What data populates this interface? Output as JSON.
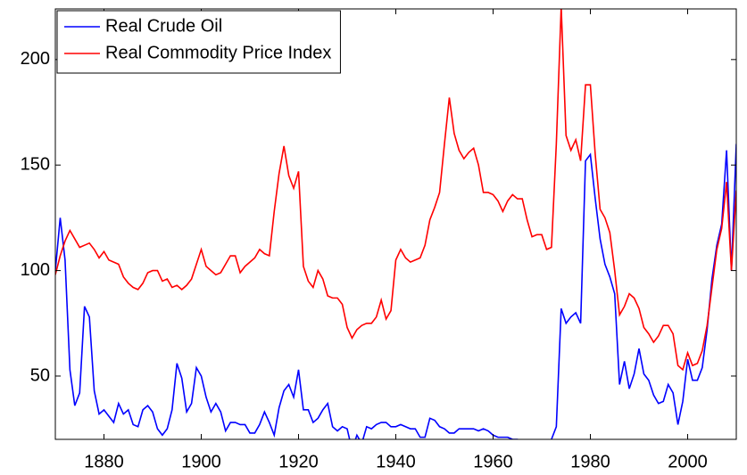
{
  "chart_data": {
    "type": "line",
    "x": [
      1870,
      1871,
      1872,
      1873,
      1874,
      1875,
      1876,
      1877,
      1878,
      1879,
      1880,
      1881,
      1882,
      1883,
      1884,
      1885,
      1886,
      1887,
      1888,
      1889,
      1890,
      1891,
      1892,
      1893,
      1894,
      1895,
      1896,
      1897,
      1898,
      1899,
      1900,
      1901,
      1902,
      1903,
      1904,
      1905,
      1906,
      1907,
      1908,
      1909,
      1910,
      1911,
      1912,
      1913,
      1914,
      1915,
      1916,
      1917,
      1918,
      1919,
      1920,
      1921,
      1922,
      1923,
      1924,
      1925,
      1926,
      1927,
      1928,
      1929,
      1930,
      1931,
      1932,
      1933,
      1934,
      1935,
      1936,
      1937,
      1938,
      1939,
      1940,
      1941,
      1942,
      1943,
      1944,
      1945,
      1946,
      1947,
      1948,
      1949,
      1950,
      1951,
      1952,
      1953,
      1954,
      1955,
      1956,
      1957,
      1958,
      1959,
      1960,
      1961,
      1962,
      1963,
      1964,
      1965,
      1966,
      1967,
      1968,
      1969,
      1970,
      1971,
      1972,
      1973,
      1974,
      1975,
      1976,
      1977,
      1978,
      1979,
      1980,
      1981,
      1982,
      1983,
      1984,
      1985,
      1986,
      1987,
      1988,
      1989,
      1990,
      1991,
      1992,
      1993,
      1994,
      1995,
      1996,
      1997,
      1998,
      1999,
      2000,
      2001,
      2002,
      2003,
      2004,
      2005,
      2006,
      2007,
      2008,
      2009,
      2010
    ],
    "series": [
      {
        "name": "Real Crude Oil",
        "color": "#0000ff",
        "values": [
          100,
          125,
          105,
          53,
          36,
          42,
          83,
          78,
          43,
          32,
          34,
          31,
          28,
          37,
          32,
          34,
          27,
          26,
          34,
          36,
          33,
          25,
          22,
          25,
          34,
          56,
          49,
          33,
          37,
          54,
          50,
          40,
          33,
          37,
          33,
          24,
          28,
          28,
          27,
          27,
          23,
          23,
          27,
          33,
          28,
          22,
          35,
          43,
          46,
          40,
          53,
          34,
          34,
          28,
          30,
          34,
          37,
          26,
          24,
          26,
          25,
          15,
          22,
          18,
          26,
          25,
          27,
          28,
          28,
          26,
          26,
          27,
          26,
          25,
          25,
          21,
          21,
          30,
          29,
          26,
          25,
          23,
          23,
          25,
          25,
          25,
          25,
          24,
          25,
          24,
          22,
          21,
          21,
          21,
          20,
          20,
          19,
          19,
          18,
          17,
          16,
          19,
          20,
          26,
          82,
          75,
          78,
          80,
          75,
          152,
          155,
          134,
          115,
          103,
          97,
          89,
          46,
          57,
          44,
          51,
          63,
          51,
          48,
          41,
          37,
          38,
          46,
          42,
          27,
          38,
          58,
          48,
          48,
          54,
          72,
          96,
          112,
          122,
          157,
          100,
          160
        ]
      },
      {
        "name": "Real Commodity Price Index",
        "color": "#ff0000",
        "values": [
          98,
          107,
          114,
          119,
          115,
          111,
          112,
          113,
          110,
          106,
          109,
          105,
          104,
          103,
          97,
          94,
          92,
          91,
          94,
          99,
          100,
          100,
          95,
          96,
          92,
          93,
          91,
          93,
          96,
          103,
          110,
          102,
          100,
          98,
          99,
          103,
          107,
          107,
          99,
          102,
          104,
          106,
          110,
          108,
          107,
          128,
          146,
          159,
          145,
          139,
          147,
          102,
          95,
          92,
          100,
          96,
          88,
          87,
          87,
          84,
          73,
          68,
          72,
          74,
          75,
          75,
          78,
          86,
          77,
          81,
          105,
          110,
          106,
          104,
          105,
          106,
          112,
          124,
          130,
          137,
          160,
          182,
          165,
          157,
          153,
          156,
          158,
          150,
          137,
          137,
          136,
          133,
          128,
          133,
          136,
          134,
          134,
          124,
          116,
          117,
          117,
          110,
          111,
          160,
          225,
          164,
          157,
          162,
          152,
          188,
          188,
          155,
          129,
          125,
          118,
          100,
          79,
          83,
          89,
          87,
          82,
          73,
          70,
          66,
          69,
          74,
          74,
          70,
          55,
          53,
          61,
          55,
          56,
          62,
          74,
          92,
          110,
          120,
          142,
          100,
          138
        ]
      }
    ],
    "xlim": [
      1870,
      2010
    ],
    "ylim": [
      20,
      224
    ],
    "xticks": [
      1880,
      1900,
      1920,
      1940,
      1960,
      1980,
      2000
    ],
    "yticks": [
      50,
      100,
      150,
      200
    ],
    "legend": "upper-left",
    "grid": false
  }
}
